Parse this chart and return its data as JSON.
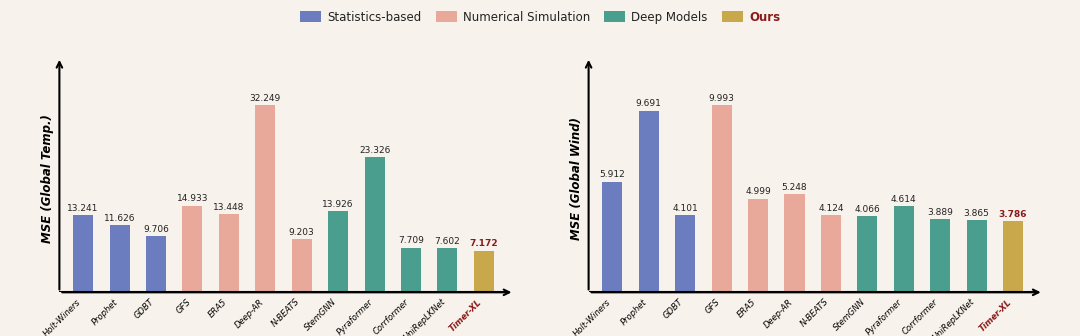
{
  "chart1": {
    "title": "MSE (Global Temp.)",
    "categories": [
      "Holt-Winers",
      "Prophet",
      "GDBT",
      "GFS",
      "ERA5",
      "Deep-AR",
      "N-BEATS",
      "StemGNN",
      "Pyraformer",
      "Corrformer",
      "UniRepLKNet",
      "Timer-XL"
    ],
    "values": [
      13.241,
      11.626,
      9.706,
      14.933,
      13.448,
      32.249,
      9.203,
      13.926,
      23.326,
      7.709,
      7.602,
      7.172
    ],
    "colors": [
      "#6b7dbf",
      "#6b7dbf",
      "#6b7dbf",
      "#e8a99a",
      "#e8a99a",
      "#e8a99a",
      "#e8a99a",
      "#4a9e8e",
      "#4a9e8e",
      "#4a9e8e",
      "#4a9e8e",
      "#c9a84c"
    ],
    "last_label_color": "#8b1a1a"
  },
  "chart2": {
    "title": "MSE (Global Wind)",
    "categories": [
      "Holt-Winers",
      "Prophet",
      "GDBT",
      "GFS",
      "ERA5",
      "Deep-AR",
      "N-BEATS",
      "StemGNN",
      "Pyraformer",
      "Corrformer",
      "UniRepLKNet",
      "Timer-XL"
    ],
    "values": [
      5.912,
      9.691,
      4.101,
      9.993,
      4.999,
      5.248,
      4.124,
      4.066,
      4.614,
      3.889,
      3.865,
      3.786
    ],
    "colors": [
      "#6b7dbf",
      "#6b7dbf",
      "#6b7dbf",
      "#e8a99a",
      "#e8a99a",
      "#e8a99a",
      "#e8a99a",
      "#4a9e8e",
      "#4a9e8e",
      "#4a9e8e",
      "#4a9e8e",
      "#c9a84c"
    ],
    "last_label_color": "#8b1a1a"
  },
  "legend": {
    "labels": [
      "Statistics-based",
      "Numerical Simulation",
      "Deep Models",
      "Ours"
    ],
    "colors": [
      "#6b7dbf",
      "#e8a99a",
      "#4a9e8e",
      "#c9a84c"
    ]
  },
  "bg_color": "#f7f3ec",
  "bar_width": 0.55,
  "label_fontsize": 6.5,
  "tick_fontsize": 6.0,
  "ylabel_fontsize": 8.5,
  "legend_fontsize": 8.5
}
